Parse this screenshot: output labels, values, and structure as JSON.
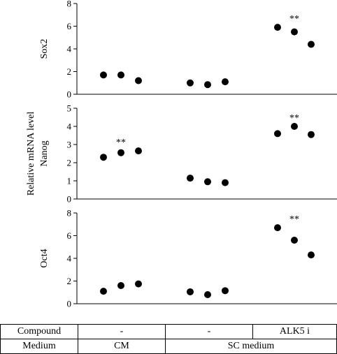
{
  "chart_data": {
    "type": "scatter",
    "shared_ylabel": "Relative mRNA level",
    "groups": [
      "CM",
      "SC medium",
      "SC medium + ALK5 i"
    ],
    "panels": [
      {
        "ylabel": "Sox2",
        "ylim": [
          0,
          8
        ],
        "yticks": [
          0,
          2,
          4,
          6,
          8
        ],
        "points": [
          [
            1.7,
            1.7,
            1.2
          ],
          [
            1.0,
            0.85,
            1.1
          ],
          [
            5.9,
            5.5,
            4.4
          ]
        ],
        "significance": [
          "",
          "",
          "**"
        ]
      },
      {
        "ylabel": "Nanog",
        "ylim": [
          0,
          5
        ],
        "yticks": [
          0,
          1,
          2,
          3,
          4,
          5
        ],
        "points": [
          [
            2.3,
            2.55,
            2.65
          ],
          [
            1.15,
            0.95,
            0.9
          ],
          [
            3.6,
            4.0,
            3.55
          ]
        ],
        "significance": [
          "**",
          "",
          "**"
        ]
      },
      {
        "ylabel": "Oct4",
        "ylim": [
          0,
          8
        ],
        "yticks": [
          0,
          2,
          4,
          6,
          8
        ],
        "points": [
          [
            1.1,
            1.6,
            1.75
          ],
          [
            1.05,
            0.8,
            1.15
          ],
          [
            6.7,
            5.6,
            4.3
          ]
        ],
        "significance": [
          "",
          "",
          "**"
        ]
      }
    ]
  },
  "table": {
    "compound_label": "Compound",
    "compound_cm": "-",
    "compound_sc": "-",
    "compound_alk": "ALK5 i",
    "medium_label": "Medium",
    "medium_cm": "CM",
    "medium_sc": "SC medium"
  }
}
